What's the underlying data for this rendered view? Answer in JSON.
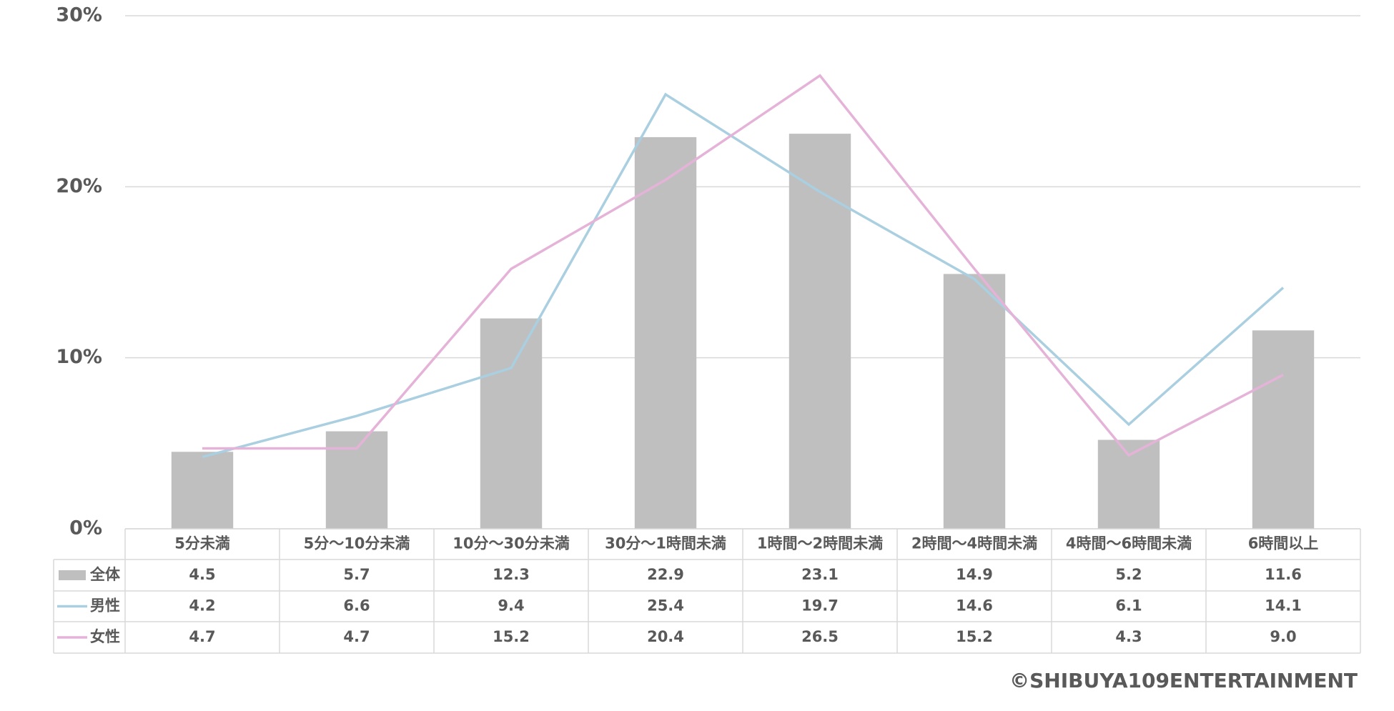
{
  "chart_data": {
    "type": "bar",
    "categories": [
      "5分未満",
      "5分～10分未満",
      "10分～30分未満",
      "30分～1時間未満",
      "1時間～2時間未満",
      "2時間～4時間未満",
      "4時間～6時間未満",
      "6時間以上"
    ],
    "series": [
      {
        "name": "全体",
        "type": "bar",
        "color": "#bfbfbf",
        "values": [
          4.5,
          5.7,
          12.3,
          22.9,
          23.1,
          14.9,
          5.2,
          11.6
        ]
      },
      {
        "name": "男性",
        "type": "line",
        "color": "#a9cfe0",
        "values": [
          4.2,
          6.6,
          9.4,
          25.4,
          19.7,
          14.6,
          6.1,
          14.1
        ]
      },
      {
        "name": "女性",
        "type": "line",
        "color": "#e5b3d8",
        "values": [
          4.7,
          4.7,
          15.2,
          20.4,
          26.5,
          15.2,
          4.3,
          9.0
        ],
        "value_labels": [
          "4.7",
          "4.7",
          "15.2",
          "20.4",
          "26.5",
          "15.2",
          "4.3",
          "9.0"
        ]
      }
    ],
    "ylim": [
      0,
      30
    ],
    "yticks": [
      {
        "value": 0,
        "label": "0%"
      },
      {
        "value": 10,
        "label": "10%"
      },
      {
        "value": 20,
        "label": "20%"
      },
      {
        "value": 30,
        "label": "30%"
      }
    ],
    "grid": true,
    "data_table": true,
    "source": "©SHIBUYA109ENTERTAINMENT"
  }
}
